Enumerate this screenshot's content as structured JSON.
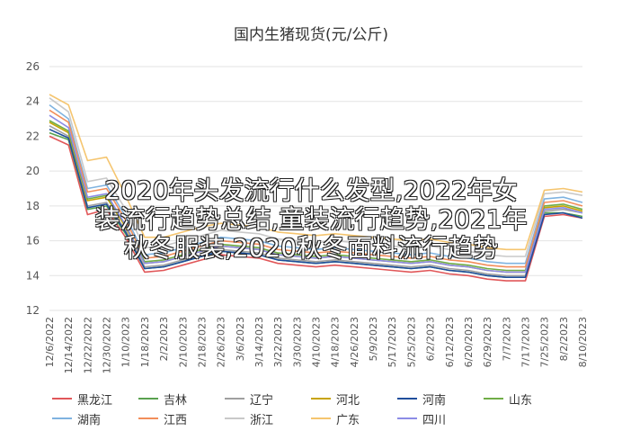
{
  "chart_data": {
    "type": "line",
    "title": "国内生猪现货(元/公斤)",
    "ylim": [
      12,
      26
    ],
    "yticks": [
      12,
      14,
      16,
      18,
      20,
      22,
      24,
      26
    ],
    "x": [
      "12/6/2022",
      "12/14/2022",
      "12/22/2022",
      "12/30/2022",
      "1/10/2023",
      "1/18/2023",
      "2/2/2023",
      "2/10/2023",
      "2/18/2023",
      "2/26/2023",
      "3/6/2023",
      "3/14/2023",
      "3/22/2023",
      "3/30/2023",
      "4/10/2023",
      "4/18/2023",
      "4/26/2023",
      "5/9/2023",
      "5/17/2023",
      "5/25/2023",
      "6/2/2023",
      "6/12/2023",
      "6/20/2023",
      "6/29/2023",
      "7/7/2023",
      "7/17/2023",
      "7/25/2023",
      "8/2/2023",
      "8/10/2023"
    ],
    "series": [
      {
        "name": "黑龙江",
        "color": "#e15759",
        "values": [
          22.0,
          21.5,
          17.5,
          17.8,
          16.2,
          14.2,
          14.3,
          14.6,
          14.9,
          15.2,
          15.1,
          15.0,
          14.7,
          14.6,
          14.5,
          14.6,
          14.5,
          14.4,
          14.3,
          14.2,
          14.3,
          14.1,
          14.0,
          13.8,
          13.7,
          13.7,
          17.4,
          17.5,
          17.3
        ]
      },
      {
        "name": "吉林",
        "color": "#59a14f",
        "values": [
          22.2,
          21.8,
          17.8,
          18.0,
          16.4,
          14.4,
          14.5,
          14.8,
          15.1,
          15.4,
          15.3,
          15.2,
          14.9,
          14.8,
          14.7,
          14.8,
          14.7,
          14.6,
          14.5,
          14.4,
          14.5,
          14.3,
          14.2,
          14.0,
          13.9,
          13.9,
          17.6,
          17.6,
          17.4
        ]
      },
      {
        "name": "辽宁",
        "color": "#a0a0a0",
        "values": [
          22.6,
          22.0,
          18.0,
          18.2,
          16.6,
          14.5,
          14.6,
          14.9,
          15.2,
          15.5,
          15.4,
          15.3,
          15.0,
          14.9,
          14.8,
          14.9,
          14.8,
          14.7,
          14.6,
          14.5,
          14.6,
          14.4,
          14.3,
          14.1,
          14.0,
          14.0,
          17.7,
          17.8,
          17.6
        ]
      },
      {
        "name": "河北",
        "color": "#c8a300",
        "values": [
          22.8,
          22.2,
          18.3,
          18.5,
          16.8,
          14.7,
          14.8,
          15.1,
          15.4,
          15.7,
          15.6,
          15.5,
          15.2,
          15.1,
          15.0,
          15.1,
          15.0,
          14.9,
          14.8,
          14.7,
          14.8,
          14.6,
          14.5,
          14.3,
          14.2,
          14.2,
          17.9,
          18.0,
          17.7
        ]
      },
      {
        "name": "河南",
        "color": "#1f4e9c",
        "values": [
          22.4,
          21.9,
          17.9,
          18.1,
          16.5,
          14.4,
          14.5,
          14.8,
          15.1,
          15.4,
          15.3,
          15.2,
          14.9,
          14.8,
          14.7,
          14.8,
          14.7,
          14.6,
          14.5,
          14.4,
          14.5,
          14.3,
          14.2,
          14.0,
          13.9,
          13.9,
          17.5,
          17.6,
          17.3
        ]
      },
      {
        "name": "山东",
        "color": "#70ad47",
        "values": [
          22.9,
          22.3,
          18.4,
          18.6,
          16.9,
          14.8,
          14.9,
          15.2,
          15.5,
          15.8,
          15.7,
          15.6,
          15.3,
          15.2,
          15.1,
          15.2,
          15.1,
          15.0,
          14.9,
          14.8,
          14.9,
          14.7,
          14.6,
          14.4,
          14.3,
          14.3,
          18.0,
          18.1,
          17.8
        ]
      },
      {
        "name": "湖南",
        "color": "#7fb3e0",
        "values": [
          23.8,
          23.0,
          19.0,
          19.2,
          17.4,
          15.2,
          15.3,
          15.6,
          15.9,
          16.2,
          16.1,
          16.0,
          15.7,
          15.6,
          15.5,
          15.6,
          15.5,
          15.4,
          15.3,
          15.2,
          15.3,
          15.1,
          15.0,
          14.8,
          14.7,
          14.7,
          18.4,
          18.5,
          18.2
        ]
      },
      {
        "name": "江西",
        "color": "#f28e5b",
        "values": [
          23.5,
          22.8,
          18.8,
          19.0,
          17.2,
          15.0,
          15.1,
          15.4,
          15.7,
          16.0,
          15.9,
          15.8,
          15.5,
          15.4,
          15.3,
          15.4,
          15.3,
          15.2,
          15.1,
          15.0,
          15.1,
          14.9,
          14.8,
          14.6,
          14.5,
          14.5,
          18.2,
          18.3,
          18.0
        ]
      },
      {
        "name": "浙江",
        "color": "#c9c9c9",
        "values": [
          24.2,
          23.4,
          19.4,
          19.6,
          17.8,
          15.6,
          15.7,
          16.0,
          16.3,
          16.6,
          16.5,
          16.4,
          16.1,
          16.0,
          15.9,
          16.0,
          15.9,
          15.8,
          15.7,
          15.6,
          15.7,
          15.5,
          15.4,
          15.2,
          15.1,
          15.1,
          18.7,
          18.8,
          18.6
        ]
      },
      {
        "name": "广东",
        "color": "#f5c56f",
        "values": [
          24.4,
          23.8,
          20.6,
          20.8,
          18.6,
          16.2,
          16.2,
          16.5,
          16.8,
          17.0,
          16.9,
          16.8,
          16.5,
          16.4,
          16.3,
          16.4,
          16.3,
          16.2,
          16.1,
          16.0,
          16.1,
          15.9,
          15.8,
          15.6,
          15.5,
          15.5,
          18.9,
          19.0,
          18.8
        ]
      },
      {
        "name": "四川",
        "color": "#8c8ce6",
        "values": [
          23.2,
          22.5,
          18.5,
          18.7,
          16.9,
          14.7,
          14.8,
          15.1,
          15.4,
          15.7,
          15.6,
          15.5,
          15.2,
          15.1,
          15.0,
          15.1,
          15.0,
          14.9,
          14.8,
          14.7,
          14.8,
          14.6,
          14.5,
          14.3,
          14.2,
          14.2,
          17.8,
          17.9,
          17.6
        ]
      }
    ]
  },
  "overlay": {
    "line1": "2020年头发流行什么发型,2022年女",
    "line2": "装流行趋势总结,童装流行趋势,2021年",
    "line3": "秋冬服装,2020秋冬面料流行趋势"
  }
}
